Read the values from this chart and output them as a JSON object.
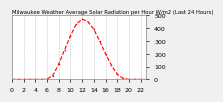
{
  "title": "Milwaukee Weather Average Solar Radiation per Hour W/m2 (Last 24 Hours)",
  "hours": [
    0,
    1,
    2,
    3,
    4,
    5,
    6,
    7,
    8,
    9,
    10,
    11,
    12,
    13,
    14,
    15,
    16,
    17,
    18,
    19,
    20,
    21,
    22,
    23
  ],
  "values": [
    0,
    0,
    0,
    0,
    0,
    0,
    2,
    30,
    120,
    230,
    340,
    430,
    470,
    450,
    390,
    300,
    200,
    110,
    40,
    8,
    0,
    0,
    0,
    0
  ],
  "line_color": "#ff0000",
  "bg_color": "#f0f0f0",
  "plot_bg": "#ffffff",
  "grid_color": "#aaaaaa",
  "ylim": [
    0,
    500
  ],
  "yticks": [
    0,
    100,
    200,
    300,
    400,
    500
  ],
  "xlabel_fontsize": 4.5,
  "ylabel_fontsize": 4.5,
  "title_fontsize": 3.8
}
